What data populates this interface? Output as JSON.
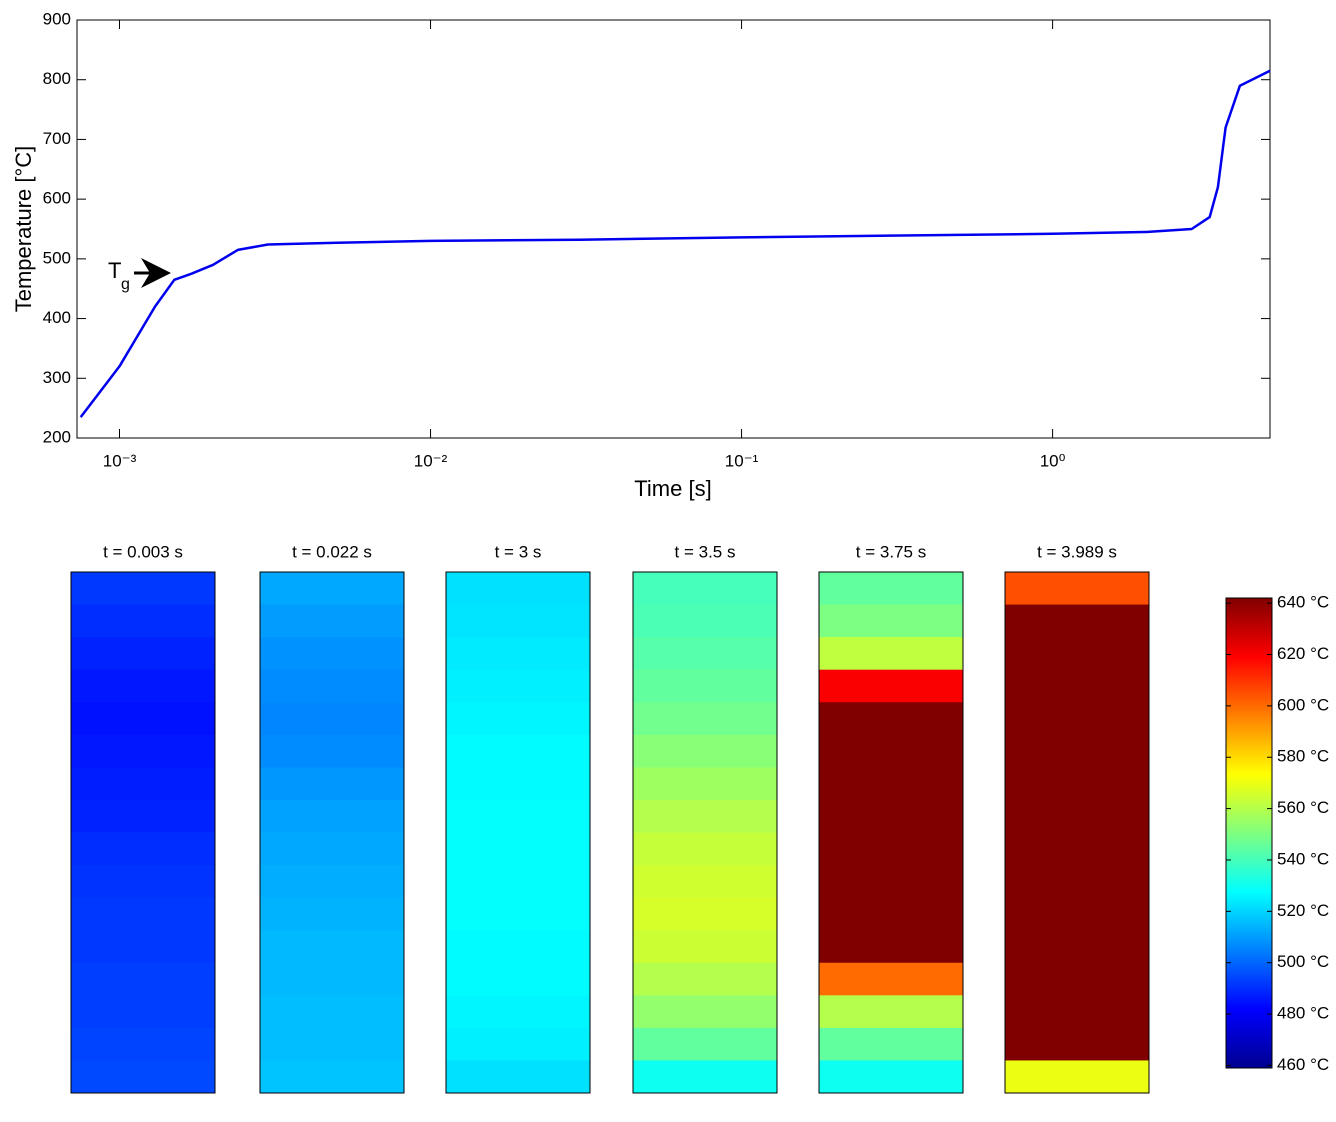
{
  "chart_data": [
    {
      "type": "line",
      "xlabel": "Time [s]",
      "ylabel": "Temperature [°C]",
      "xscale": "log",
      "x": [
        0.00075,
        0.001,
        0.0013,
        0.0015,
        0.0017,
        0.002,
        0.0024,
        0.003,
        0.005,
        0.01,
        0.03,
        0.1,
        0.3,
        1,
        2,
        2.8,
        3.2,
        3.4,
        3.6,
        4,
        5
      ],
      "series": [
        {
          "color": "#0000ee",
          "values": [
            235,
            320,
            420,
            465,
            475,
            490,
            515,
            524,
            527,
            530,
            532,
            536,
            539,
            542,
            545,
            550,
            570,
            620,
            720,
            790,
            815
          ]
        }
      ],
      "xlim": [
        0.00073,
        5
      ],
      "ylim": [
        200,
        900
      ],
      "xticks": [
        {
          "value": 0.001,
          "label": "10⁻³"
        },
        {
          "value": 0.01,
          "label": "10⁻²"
        },
        {
          "value": 0.1,
          "label": "10⁻¹"
        },
        {
          "value": 1,
          "label": "10⁰"
        }
      ],
      "yticks": [
        200,
        300,
        400,
        500,
        600,
        700,
        800,
        900
      ],
      "annotation": {
        "text": "T",
        "subscript": "g"
      }
    },
    {
      "type": "heatmap",
      "colormap": "jet",
      "clim": [
        459,
        642
      ],
      "panels": [
        {
          "title": "t = 0.003 s",
          "values": [
            492,
            490,
            488,
            486,
            485,
            486,
            487,
            488,
            490,
            491,
            492,
            492,
            493,
            493,
            494,
            495
          ]
        },
        {
          "title": "t = 0.022 s",
          "values": [
            512,
            510,
            508,
            507,
            506,
            507,
            509,
            511,
            512,
            513,
            514,
            515,
            515,
            516,
            516,
            517
          ]
        },
        {
          "title": "t = 3 s",
          "values": [
            522,
            523,
            524,
            525,
            526,
            527,
            527,
            528,
            528,
            528,
            528,
            527,
            527,
            526,
            525,
            522
          ]
        },
        {
          "title": "t = 3.5 s",
          "values": [
            540,
            541,
            543,
            545,
            548,
            552,
            556,
            560,
            563,
            565,
            566,
            564,
            560,
            554,
            545,
            530
          ]
        },
        {
          "title": "t = 3.75 s",
          "values": [
            545,
            550,
            562,
            620,
            642,
            642,
            642,
            642,
            642,
            642,
            642,
            642,
            600,
            560,
            545,
            530
          ]
        },
        {
          "title": "t = 3.989 s",
          "values": [
            605,
            642,
            642,
            642,
            642,
            642,
            642,
            642,
            642,
            642,
            642,
            642,
            642,
            642,
            642,
            570
          ]
        }
      ],
      "colorbar_ticks": [
        {
          "value": 640,
          "label": "640 °C"
        },
        {
          "value": 620,
          "label": "620 °C"
        },
        {
          "value": 600,
          "label": "600 °C"
        },
        {
          "value": 580,
          "label": "580 °C"
        },
        {
          "value": 560,
          "label": "560 °C"
        },
        {
          "value": 540,
          "label": "540 °C"
        },
        {
          "value": 520,
          "label": "520 °C"
        },
        {
          "value": 500,
          "label": "500 °C"
        },
        {
          "value": 480,
          "label": "480 °C"
        },
        {
          "value": 460,
          "label": "460 °C"
        }
      ]
    }
  ]
}
